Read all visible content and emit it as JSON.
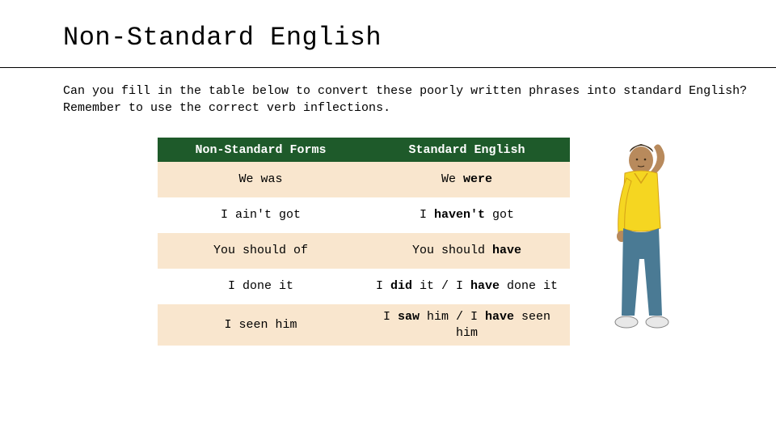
{
  "title": "Non-Standard English",
  "instructions": "Can you fill in the table below to convert these poorly written phrases into standard English? Remember to use the correct verb inflections.",
  "table": {
    "header_bg": "#1e5a2a",
    "header_fg": "#ffffff",
    "row_bg": "#f9e6ce",
    "row_alt_bg": "#ffffff",
    "columns": [
      "Non-Standard Forms",
      "Standard English"
    ],
    "rows": [
      {
        "nonstandard": "We was",
        "standard_pre": "We ",
        "standard_bold": "were",
        "standard_post": ""
      },
      {
        "nonstandard": "I ain't got",
        "standard_pre": "I ",
        "standard_bold": "haven't",
        "standard_post": " got"
      },
      {
        "nonstandard": "You should of",
        "standard_pre": "You should ",
        "standard_bold": "have",
        "standard_post": ""
      },
      {
        "nonstandard": "I done it",
        "standard_html": "I <b>did</b> it / I <b>have</b> done it"
      },
      {
        "nonstandard": "I seen him",
        "standard_html": "I <b>saw</b> him / I <b>have</b> seen him"
      }
    ]
  },
  "person": {
    "shirt_color": "#f5d621",
    "shirt_stroke": "#d4a017",
    "pants_color": "#4a7a94",
    "skin_color": "#b88a5c",
    "hair_color": "#3a2a18",
    "shoe_color": "#e8e8e8"
  }
}
